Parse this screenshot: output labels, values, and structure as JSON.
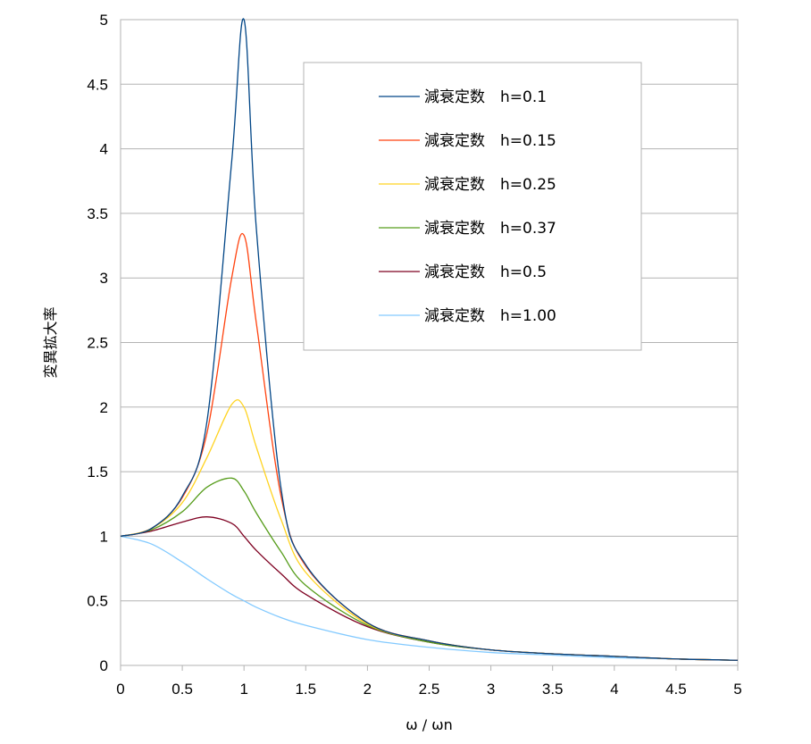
{
  "chart_data": {
    "type": "line",
    "title": "",
    "xlabel": "ω / ωn",
    "ylabel": "変異拡大率",
    "xlim": [
      0,
      5
    ],
    "ylim": [
      0,
      5
    ],
    "x_ticks": [
      "0",
      "0.5",
      "1",
      "1.5",
      "2",
      "2.5",
      "3",
      "3.5",
      "4",
      "4.5",
      "5"
    ],
    "y_ticks": [
      "0",
      "0.5",
      "1",
      "1.5",
      "2",
      "2.5",
      "3",
      "3.5",
      "4",
      "4.5",
      "5"
    ],
    "grid": "horizontal",
    "legend_position": "top-right",
    "x": [
      0,
      0.25,
      0.5,
      0.7,
      0.9,
      1.0,
      1.1,
      1.3,
      1.5,
      2,
      2.5,
      3,
      3.5,
      4,
      4.5,
      5
    ],
    "series": [
      {
        "name": "減衰定数　h=0.1",
        "color": "#004586",
        "values": [
          1.0,
          1.06,
          1.31,
          1.89,
          3.9,
          5.0,
          3.38,
          1.37,
          0.78,
          0.33,
          0.19,
          0.12,
          0.09,
          0.07,
          0.05,
          0.04
        ]
      },
      {
        "name": "減衰定数　h=0.15",
        "color": "#ff420e",
        "values": [
          1.0,
          1.06,
          1.3,
          1.8,
          3.0,
          3.33,
          2.65,
          1.31,
          0.77,
          0.33,
          0.19,
          0.12,
          0.09,
          0.07,
          0.05,
          0.04
        ]
      },
      {
        "name": "減衰定数　h=0.25",
        "color": "#ffd320",
        "values": [
          1.0,
          1.06,
          1.26,
          1.61,
          2.02,
          2.0,
          1.69,
          1.13,
          0.72,
          0.32,
          0.19,
          0.12,
          0.09,
          0.07,
          0.05,
          0.04
        ]
      },
      {
        "name": "減衰定数　h=0.37",
        "color": "#579d1c",
        "values": [
          1.0,
          1.05,
          1.19,
          1.38,
          1.45,
          1.35,
          1.18,
          0.88,
          0.62,
          0.31,
          0.18,
          0.12,
          0.09,
          0.07,
          0.05,
          0.04
        ]
      },
      {
        "name": "減衰定数　h=0.5",
        "color": "#7e0021",
        "values": [
          1.0,
          1.04,
          1.11,
          1.15,
          1.1,
          1.0,
          0.89,
          0.71,
          0.55,
          0.3,
          0.18,
          0.12,
          0.09,
          0.07,
          0.05,
          0.04
        ]
      },
      {
        "name": "減衰定数　h=1.00",
        "color": "#83caff",
        "values": [
          1.0,
          0.94,
          0.8,
          0.67,
          0.55,
          0.5,
          0.45,
          0.37,
          0.31,
          0.2,
          0.14,
          0.1,
          0.08,
          0.06,
          0.05,
          0.04
        ]
      }
    ]
  }
}
